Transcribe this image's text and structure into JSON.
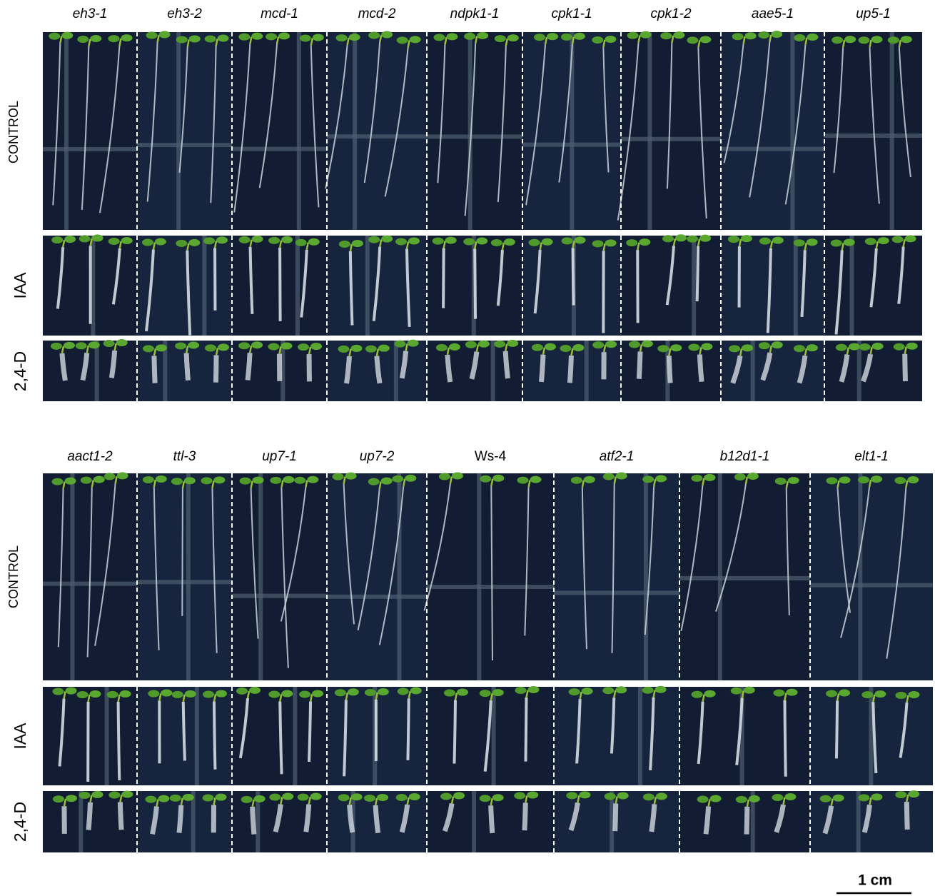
{
  "figure": {
    "panels": [
      {
        "columns": [
          {
            "label": "eh3-1",
            "italic": true
          },
          {
            "label": "eh3-2",
            "italic": true
          },
          {
            "label": "mcd-1",
            "italic": true
          },
          {
            "label": "mcd-2",
            "italic": true
          },
          {
            "label": "ndpk1-1",
            "italic": true
          },
          {
            "label": "cpk1-1",
            "italic": true
          },
          {
            "label": "cpk1-2",
            "italic": true
          },
          {
            "label": "aae5-1",
            "italic": true
          },
          {
            "label": "up5-1",
            "italic": true
          }
        ],
        "rows": [
          "CONTROL",
          "IAA",
          "2,4-D"
        ]
      },
      {
        "columns": [
          {
            "label": "aact1-2",
            "italic": true
          },
          {
            "label": "ttl-3",
            "italic": true
          },
          {
            "label": "up7-1",
            "italic": true
          },
          {
            "label": "up7-2",
            "italic": true
          },
          {
            "label": "Ws-4",
            "italic": false
          },
          {
            "label": "atf2-1",
            "italic": true
          },
          {
            "label": "b12d1-1",
            "italic": true
          },
          {
            "label": "elt1-1",
            "italic": true
          }
        ],
        "rows": [
          "CONTROL",
          "IAA",
          "2,4-D"
        ]
      }
    ],
    "scale_bar": "1 cm"
  }
}
